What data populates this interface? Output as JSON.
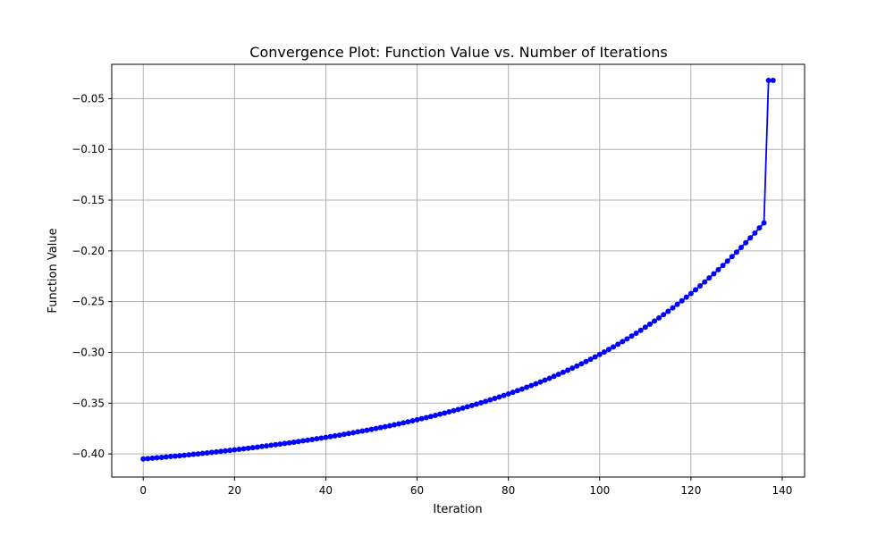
{
  "chart_data": {
    "type": "line",
    "title": "Convergence Plot: Function Value vs. Number of Iterations",
    "xlabel": "Iteration",
    "ylabel": "Function Value",
    "xlim": [
      -6.9,
      144.9
    ],
    "ylim": [
      -0.4228,
      -0.0162
    ],
    "grid": true,
    "legend": "none",
    "color": "#0000ff",
    "marker": "circle",
    "xticks": [
      {
        "value": 0,
        "label": "0"
      },
      {
        "value": 20,
        "label": "20"
      },
      {
        "value": 40,
        "label": "40"
      },
      {
        "value": 60,
        "label": "60"
      },
      {
        "value": 80,
        "label": "80"
      },
      {
        "value": 100,
        "label": "100"
      },
      {
        "value": 120,
        "label": "120"
      },
      {
        "value": 140,
        "label": "140"
      }
    ],
    "yticks": [
      {
        "value": -0.4,
        "label": "−0.40"
      },
      {
        "value": -0.35,
        "label": "−0.35"
      },
      {
        "value": -0.3,
        "label": "−0.30"
      },
      {
        "value": -0.25,
        "label": "−0.25"
      },
      {
        "value": -0.2,
        "label": "−0.20"
      },
      {
        "value": -0.15,
        "label": "−0.15"
      },
      {
        "value": -0.1,
        "label": "−0.10"
      },
      {
        "value": -0.05,
        "label": "−0.05"
      }
    ],
    "series": [
      {
        "x": [
          0,
          1,
          2,
          3,
          4,
          5,
          6,
          7,
          8,
          9,
          10,
          11,
          12,
          13,
          14,
          15,
          16,
          17,
          18,
          19,
          20,
          21,
          22,
          23,
          24,
          25,
          26,
          27,
          28,
          29,
          30,
          31,
          32,
          33,
          34,
          35,
          36,
          37,
          38,
          39,
          40,
          41,
          42,
          43,
          44,
          45,
          46,
          47,
          48,
          49,
          50,
          51,
          52,
          53,
          54,
          55,
          56,
          57,
          58,
          59,
          60,
          61,
          62,
          63,
          64,
          65,
          66,
          67,
          68,
          69,
          70,
          71,
          72,
          73,
          74,
          75,
          76,
          77,
          78,
          79,
          80,
          81,
          82,
          83,
          84,
          85,
          86,
          87,
          88,
          89,
          90,
          91,
          92,
          93,
          94,
          95,
          96,
          97,
          98,
          99,
          100,
          101,
          102,
          103,
          104,
          105,
          106,
          107,
          108,
          109,
          110,
          111,
          112,
          113,
          114,
          115,
          116,
          117,
          118,
          119,
          120,
          121,
          122,
          123,
          124,
          125,
          126,
          127,
          128,
          129,
          130,
          131,
          132,
          133,
          134,
          135,
          136,
          137,
          138
        ],
        "y": [
          -0.405,
          -0.4046,
          -0.4042,
          -0.4038,
          -0.4034,
          -0.403,
          -0.4026,
          -0.4022,
          -0.4018,
          -0.4013,
          -0.4009,
          -0.4004,
          -0.4,
          -0.3995,
          -0.399,
          -0.3985,
          -0.398,
          -0.3975,
          -0.397,
          -0.3965,
          -0.396,
          -0.3955,
          -0.395,
          -0.3944,
          -0.3939,
          -0.3933,
          -0.3927,
          -0.3921,
          -0.3915,
          -0.3909,
          -0.3903,
          -0.3897,
          -0.3891,
          -0.3885,
          -0.3878,
          -0.3872,
          -0.3865,
          -0.3858,
          -0.3851,
          -0.3844,
          -0.3837,
          -0.383,
          -0.3822,
          -0.3815,
          -0.3807,
          -0.3799,
          -0.3791,
          -0.3783,
          -0.3775,
          -0.3767,
          -0.3758,
          -0.375,
          -0.3741,
          -0.3732,
          -0.3723,
          -0.3713,
          -0.3704,
          -0.3694,
          -0.3684,
          -0.3674,
          -0.3664,
          -0.3653,
          -0.3643,
          -0.3632,
          -0.3621,
          -0.3609,
          -0.3598,
          -0.3586,
          -0.3574,
          -0.3562,
          -0.3549,
          -0.3536,
          -0.3523,
          -0.351,
          -0.3496,
          -0.3483,
          -0.3468,
          -0.3454,
          -0.3439,
          -0.3424,
          -0.3409,
          -0.3393,
          -0.3377,
          -0.3361,
          -0.3344,
          -0.3327,
          -0.3309,
          -0.3292,
          -0.3273,
          -0.3255,
          -0.3236,
          -0.3216,
          -0.3196,
          -0.3176,
          -0.3155,
          -0.3134,
          -0.3112,
          -0.309,
          -0.3067,
          -0.3044,
          -0.302,
          -0.2996,
          -0.2971,
          -0.2946,
          -0.292,
          -0.2894,
          -0.2867,
          -0.2839,
          -0.2811,
          -0.2782,
          -0.2752,
          -0.2722,
          -0.2691,
          -0.266,
          -0.2628,
          -0.2595,
          -0.2561,
          -0.2527,
          -0.2492,
          -0.2456,
          -0.242,
          -0.2383,
          -0.2345,
          -0.2306,
          -0.2267,
          -0.2226,
          -0.2185,
          -0.2143,
          -0.21,
          -0.2056,
          -0.2012,
          -0.1966,
          -0.192,
          -0.1872,
          -0.1824,
          -0.1774,
          -0.1724,
          -0.032,
          -0.032
        ]
      }
    ]
  }
}
